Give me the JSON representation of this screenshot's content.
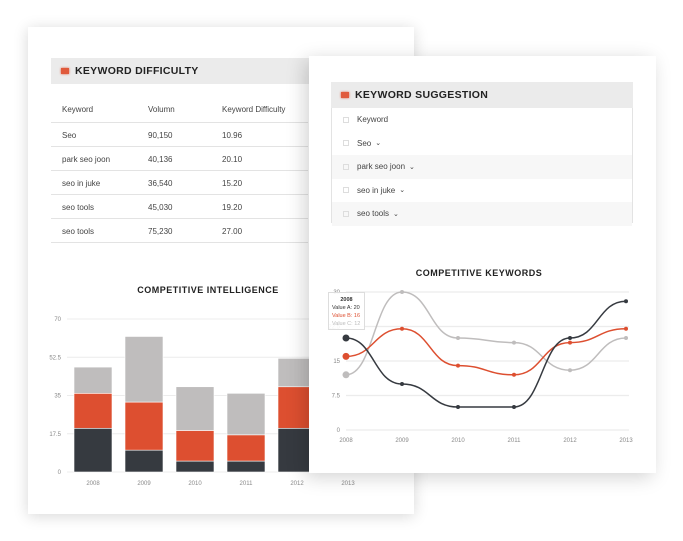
{
  "keyword_difficulty": {
    "title": "KEYWORD DIFFICULTY",
    "columns": [
      "Keyword",
      "Volumn",
      "Keyword Difficulty"
    ],
    "rows": [
      [
        "Seo",
        "90,150",
        "10.96"
      ],
      [
        "park seo joon",
        "40,136",
        "20.10"
      ],
      [
        "seo in juke",
        "36,540",
        "15.20"
      ],
      [
        "seo tools",
        "45,030",
        "19.20"
      ],
      [
        "seo tools",
        "75,230",
        "27.00"
      ]
    ]
  },
  "keyword_suggestion": {
    "title": "KEYWORD SUGGESTION",
    "header": "Keyword",
    "items": [
      "Seo",
      "park seo joon",
      "seo in juke",
      "seo tools"
    ]
  },
  "tooltip": {
    "title": "2008",
    "a": "Value A: 20",
    "b": "Value B: 16",
    "c": "Value C: 12"
  },
  "colors": {
    "a": "#363a40",
    "b": "#dd4f30",
    "c": "#bfbdbd",
    "accent": "#e05a3c"
  },
  "chart_data": [
    {
      "type": "bar",
      "stacked": true,
      "title": "COMPETITIVE INTELLIGENCE",
      "categories": [
        "2008",
        "2009",
        "2010",
        "2011",
        "2012",
        "2013"
      ],
      "yticks": [
        "0",
        "17.5",
        "35",
        "52.5",
        "70"
      ],
      "ylim": [
        0,
        70
      ],
      "series": [
        {
          "name": "Value A",
          "values": [
            20,
            10,
            5,
            5,
            20,
            28
          ]
        },
        {
          "name": "Value B",
          "values": [
            16,
            22,
            14,
            12,
            19,
            22
          ]
        },
        {
          "name": "Value C",
          "values": [
            12,
            30,
            20,
            19,
            13,
            20
          ]
        }
      ]
    },
    {
      "type": "line",
      "title": "COMPETITIVE KEYWORDS",
      "categories": [
        "2008",
        "2009",
        "2010",
        "2011",
        "2012",
        "2013"
      ],
      "yticks": [
        "0",
        "7.5",
        "15",
        "22.5",
        "30"
      ],
      "ylim": [
        0,
        30
      ],
      "series": [
        {
          "name": "Value A",
          "values": [
            20,
            10,
            5,
            5,
            20,
            28
          ]
        },
        {
          "name": "Value B",
          "values": [
            16,
            22,
            14,
            12,
            19,
            22
          ]
        },
        {
          "name": "Value C",
          "values": [
            12,
            30,
            20,
            19,
            13,
            20
          ]
        }
      ]
    }
  ]
}
